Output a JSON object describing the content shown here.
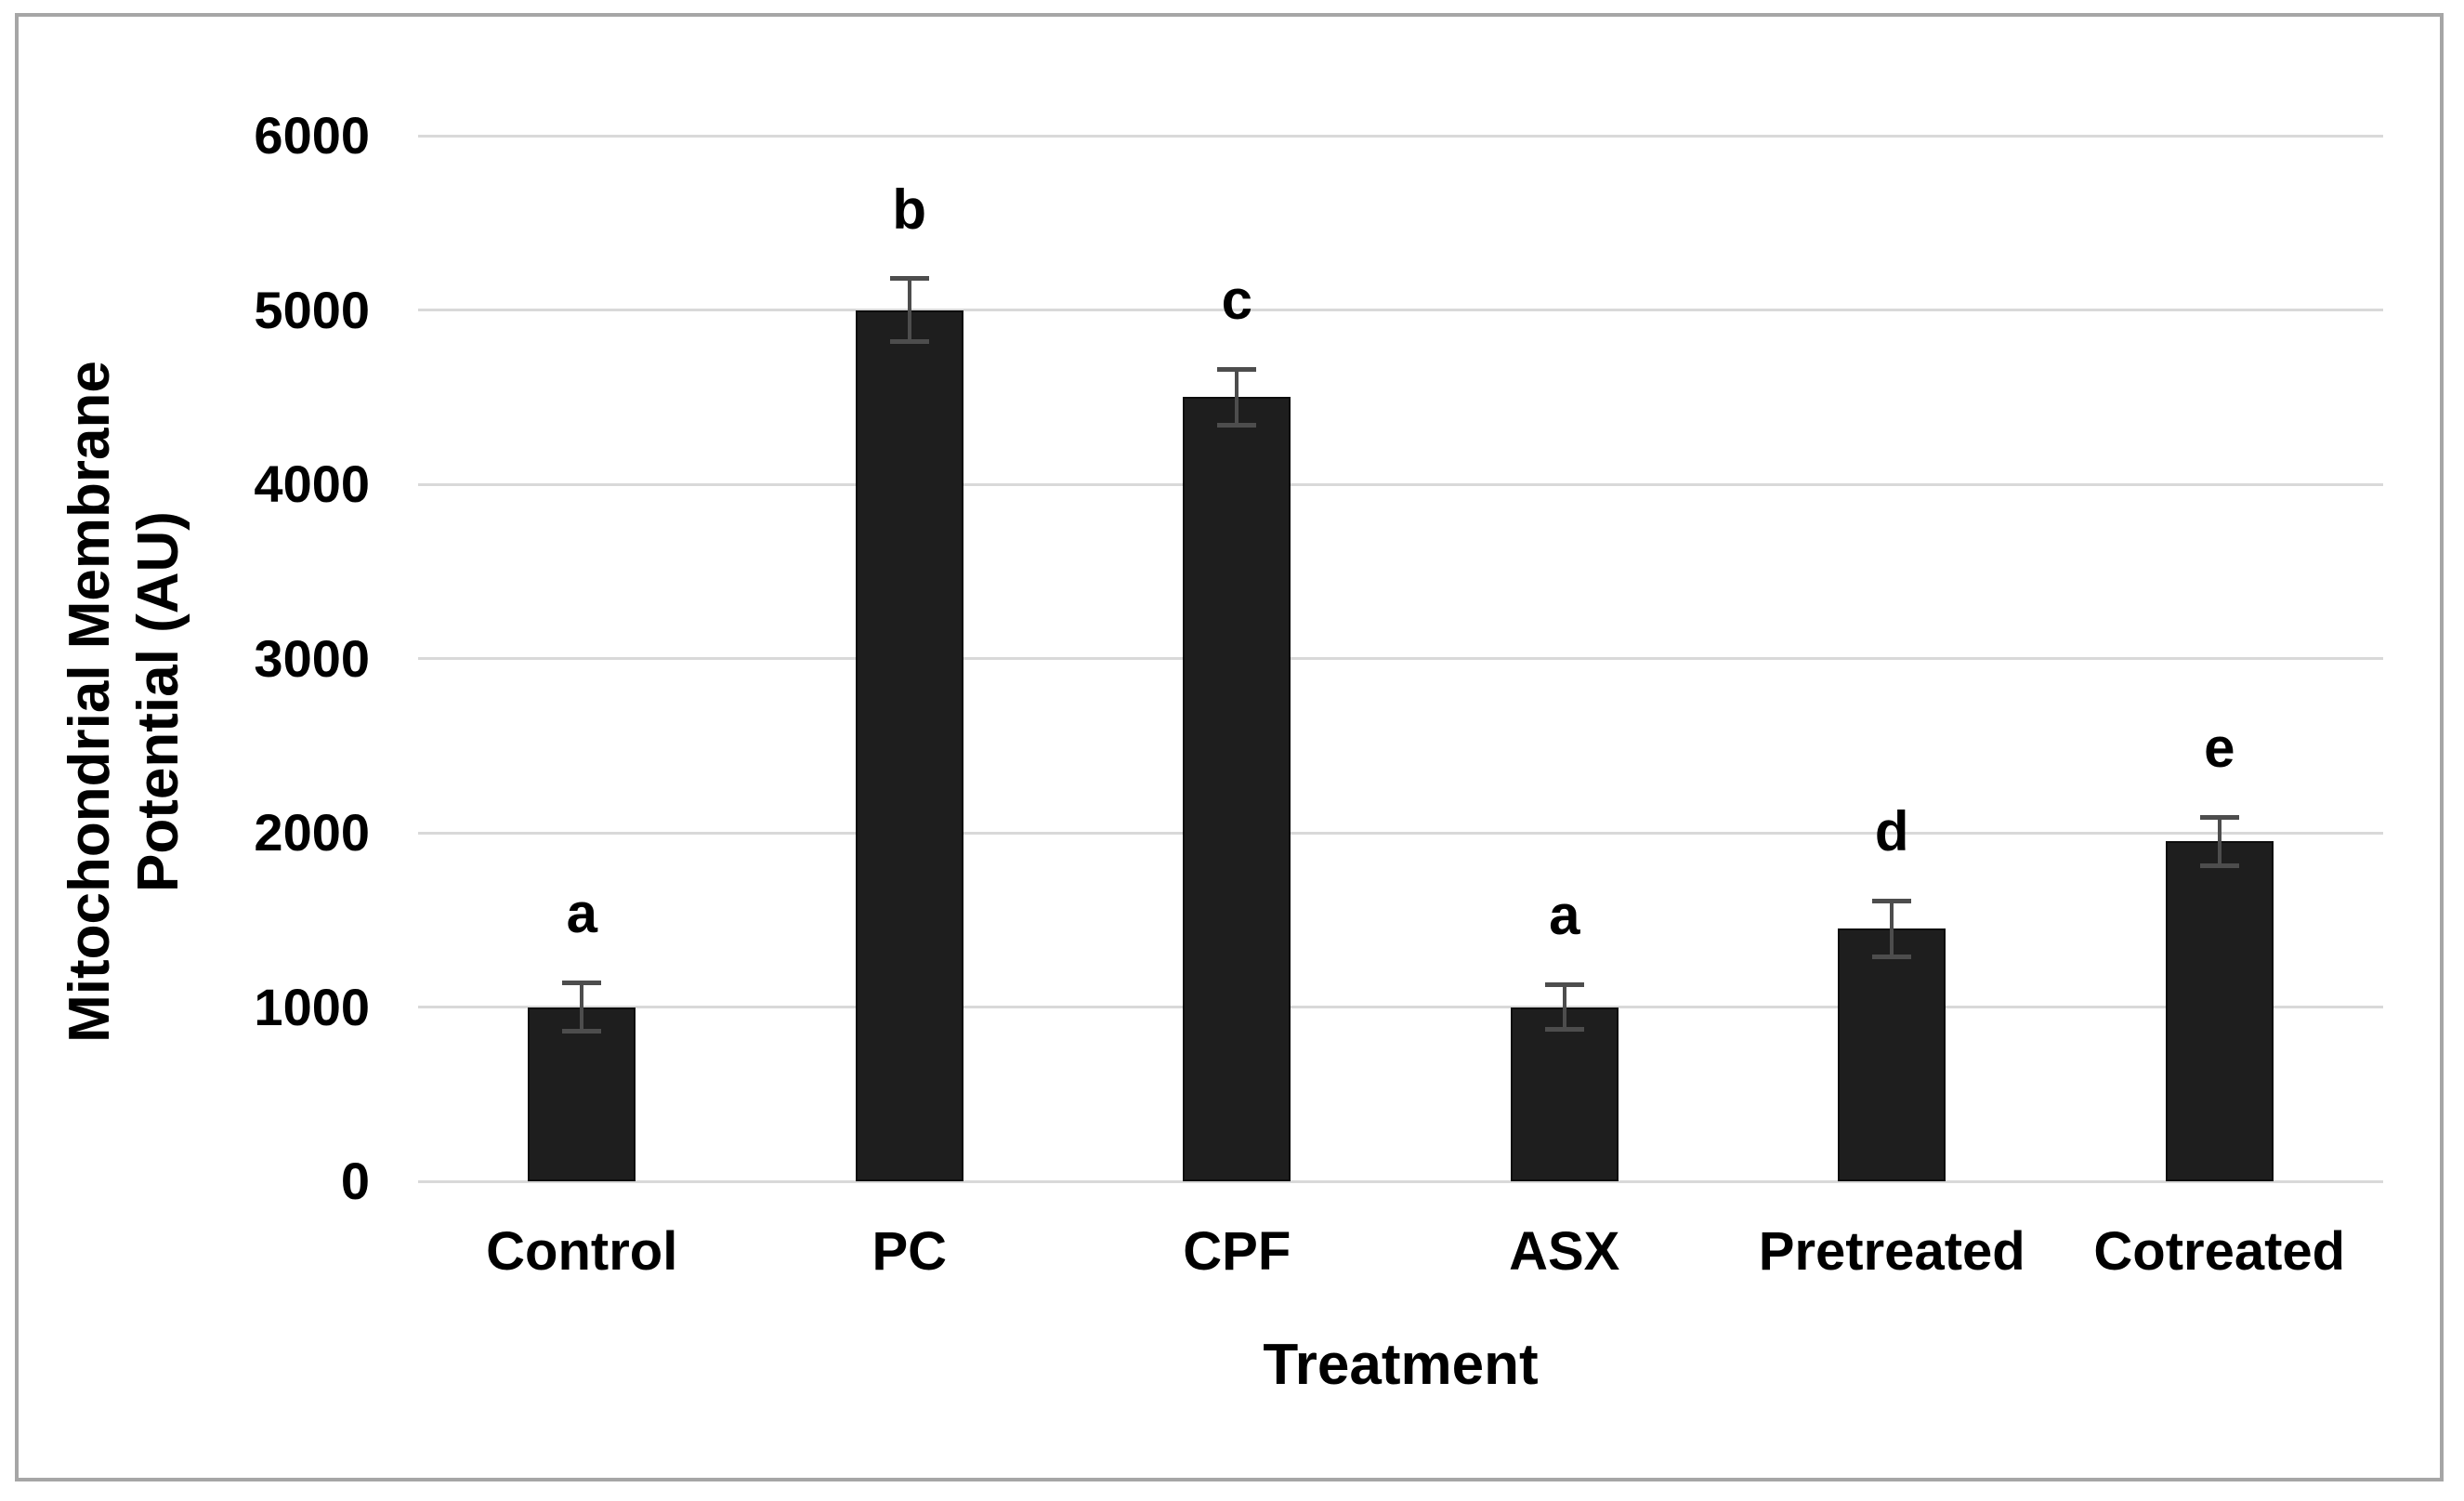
{
  "chart_data": {
    "type": "bar",
    "title": "",
    "xlabel": "Treatment",
    "ylabel": "Mitochondrial Membrane Potential (AU)",
    "ylabel_lines": [
      "Mitochondrial Membrane",
      "Potential (AU)"
    ],
    "categories": [
      "Control",
      "PC",
      "CPF",
      "ASX",
      "Pretreated",
      "Cotreated"
    ],
    "series": [
      {
        "name": "Mitochondrial Membrane Potential",
        "values": [
          1000,
          5000,
          4500,
          1000,
          1450,
          1950
        ],
        "error_bars": [
          140,
          180,
          160,
          130,
          160,
          140
        ],
        "significance_letters": [
          "a",
          "b",
          "c",
          "a",
          "d",
          "e"
        ]
      }
    ],
    "ylim": [
      0,
      6000
    ],
    "ytick_step": 1000,
    "ytick_labels": [
      "0",
      "1000",
      "2000",
      "3000",
      "4000",
      "5000",
      "6000"
    ],
    "grid": "horizontal-only",
    "legend_position": "none",
    "colors": {
      "bar": "#1e1e1e",
      "gridline": "#d9d9d9",
      "error_bar": "#4d4d4d",
      "text": "#000000",
      "frame_border": "#a6a6a6",
      "background": "#ffffff"
    }
  }
}
